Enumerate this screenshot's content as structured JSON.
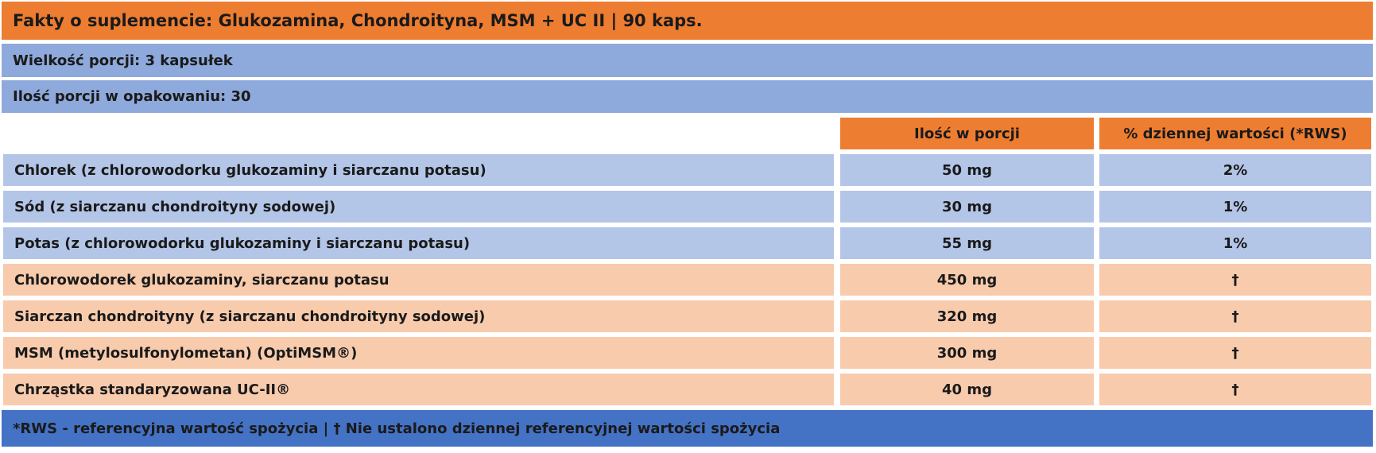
{
  "header": {
    "title": "Fakty o suplemencie: Glukozamina, Chondroityna, MSM + UC II | 90 kaps.",
    "serving_size": "Wielkość porcji: 3 kapsułek",
    "servings_per_container": "Ilość porcji w opakowaniu: 30"
  },
  "table": {
    "columns": [
      "Ilość w porcji",
      "% dziennej wartości (*RWS)"
    ],
    "rows": [
      [
        "Chlorek (z chlorowodorku glukozaminy i siarczanu potasu)",
        "50 mg",
        "2%"
      ],
      [
        "Sód (z siarczanu chondroityny sodowej)",
        "30 mg",
        "1%"
      ],
      [
        "Potas (z chlorowodorku glukozaminy i siarczanu potasu)",
        "55 mg",
        "1%"
      ],
      [
        "Chlorowodorek glukozaminy, siarczanu potasu",
        "450 mg",
        "†"
      ],
      [
        "Siarczan chondroityny (z siarczanu chondroityny sodowej)",
        "320 mg",
        "†"
      ],
      [
        "MSM (metylosulfonylometan) (OptiMSM®)",
        "300 mg",
        "†"
      ],
      [
        "Chrząstka standaryzowana UC-II®",
        "40 mg",
        "†"
      ]
    ]
  },
  "footer": {
    "note": "*RWS - referencyjna wartość spożycia | † Nie ustalono dziennej referencyjnej wartości spożycia"
  }
}
